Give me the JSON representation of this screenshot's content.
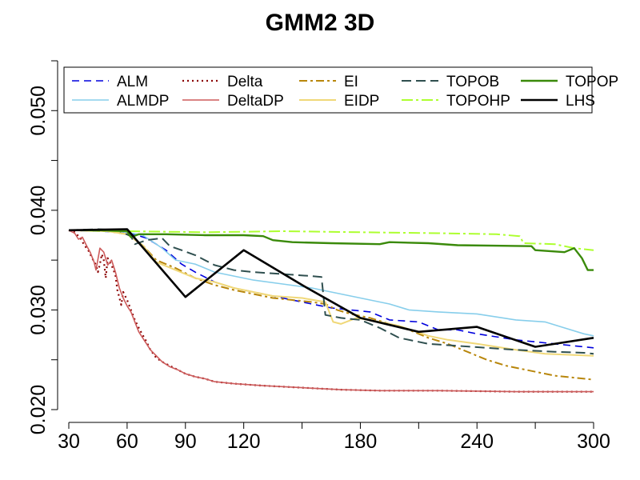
{
  "chart_data": {
    "type": "line",
    "title": "GMM2 3D",
    "xlabel": "",
    "ylabel": "",
    "xlim": [
      30,
      300
    ],
    "ylim": [
      0.02,
      0.055
    ],
    "x_ticks": [
      30,
      60,
      90,
      120,
      150,
      180,
      210,
      240,
      270,
      300
    ],
    "x_tick_labels": [
      "30",
      "60",
      "90",
      "120",
      "",
      "180",
      "",
      "240",
      "",
      "300"
    ],
    "y_ticks": [
      0.02,
      0.025,
      0.03,
      0.035,
      0.04,
      0.045,
      0.05,
      0.055
    ],
    "y_tick_labels": [
      "0.020",
      "",
      "0.030",
      "",
      "0.040",
      "",
      "0.050",
      ""
    ],
    "grid": false,
    "legend_position": "top",
    "series": [
      {
        "name": "ALM",
        "color": "#0000dd",
        "dash": "9,6",
        "width": 1.6,
        "points": [
          [
            30,
            0.038
          ],
          [
            45,
            0.0379
          ],
          [
            60,
            0.0378
          ],
          [
            70,
            0.0372
          ],
          [
            80,
            0.036
          ],
          [
            88,
            0.0346
          ],
          [
            95,
            0.0338
          ],
          [
            105,
            0.0328
          ],
          [
            115,
            0.0322
          ],
          [
            125,
            0.0318
          ],
          [
            140,
            0.0312
          ],
          [
            155,
            0.0306
          ],
          [
            165,
            0.0302
          ],
          [
            175,
            0.03
          ],
          [
            185,
            0.0298
          ],
          [
            195,
            0.029
          ],
          [
            210,
            0.0288
          ],
          [
            220,
            0.028
          ],
          [
            230,
            0.028
          ],
          [
            240,
            0.0276
          ],
          [
            260,
            0.027
          ],
          [
            280,
            0.0266
          ],
          [
            300,
            0.0262
          ]
        ]
      },
      {
        "name": "ALMDP",
        "color": "#87ceeb",
        "dash": "",
        "width": 1.6,
        "points": [
          [
            30,
            0.038
          ],
          [
            50,
            0.0379
          ],
          [
            60,
            0.0378
          ],
          [
            68,
            0.0375
          ],
          [
            72,
            0.037
          ],
          [
            78,
            0.0362
          ],
          [
            85,
            0.035
          ],
          [
            95,
            0.0346
          ],
          [
            105,
            0.0338
          ],
          [
            115,
            0.0334
          ],
          [
            125,
            0.033
          ],
          [
            140,
            0.0326
          ],
          [
            155,
            0.0322
          ],
          [
            165,
            0.0318
          ],
          [
            175,
            0.0314
          ],
          [
            185,
            0.031
          ],
          [
            195,
            0.0306
          ],
          [
            205,
            0.03
          ],
          [
            220,
            0.0298
          ],
          [
            240,
            0.0296
          ],
          [
            260,
            0.029
          ],
          [
            275,
            0.0288
          ],
          [
            285,
            0.0282
          ],
          [
            295,
            0.0276
          ],
          [
            300,
            0.0274
          ]
        ]
      },
      {
        "name": "Delta",
        "color": "#8b0000",
        "dash": "2,4",
        "width": 2.2,
        "points": [
          [
            30,
            0.038
          ],
          [
            33,
            0.0378
          ],
          [
            36,
            0.0372
          ],
          [
            38,
            0.0365
          ],
          [
            40,
            0.036
          ],
          [
            42,
            0.0352
          ],
          [
            44,
            0.0345
          ],
          [
            45,
            0.0338
          ],
          [
            46,
            0.0346
          ],
          [
            47,
            0.0356
          ],
          [
            48,
            0.035
          ],
          [
            49,
            0.0332
          ],
          [
            50,
            0.0352
          ],
          [
            52,
            0.0345
          ],
          [
            54,
            0.0335
          ],
          [
            55,
            0.032
          ],
          [
            57,
            0.0305
          ],
          [
            58,
            0.0318
          ],
          [
            60,
            0.031
          ],
          [
            62,
            0.03
          ],
          [
            64,
            0.029
          ],
          [
            66,
            0.0282
          ],
          [
            68,
            0.0275
          ],
          [
            70,
            0.0268
          ],
          [
            72,
            0.026
          ],
          [
            75,
            0.0252
          ],
          [
            78,
            0.0248
          ],
          [
            82,
            0.0244
          ],
          [
            86,
            0.024
          ],
          [
            90,
            0.0236
          ],
          [
            95,
            0.0233
          ],
          [
            100,
            0.0231
          ],
          [
            105,
            0.0228
          ],
          [
            115,
            0.0226
          ],
          [
            130,
            0.0224
          ],
          [
            150,
            0.0222
          ],
          [
            170,
            0.022
          ],
          [
            190,
            0.0219
          ],
          [
            220,
            0.0219
          ],
          [
            260,
            0.0218
          ],
          [
            300,
            0.0218
          ]
        ]
      },
      {
        "name": "DeltaDP",
        "color": "#cd5c5c",
        "dash": "",
        "width": 1.6,
        "points": [
          [
            30,
            0.038
          ],
          [
            33,
            0.0377
          ],
          [
            35,
            0.0371
          ],
          [
            37,
            0.0373
          ],
          [
            39,
            0.0365
          ],
          [
            41,
            0.0358
          ],
          [
            43,
            0.0348
          ],
          [
            44,
            0.034
          ],
          [
            46,
            0.0362
          ],
          [
            48,
            0.0358
          ],
          [
            50,
            0.0345
          ],
          [
            52,
            0.035
          ],
          [
            54,
            0.0338
          ],
          [
            56,
            0.0322
          ],
          [
            58,
            0.0312
          ],
          [
            60,
            0.0304
          ],
          [
            62,
            0.0298
          ],
          [
            64,
            0.0288
          ],
          [
            66,
            0.0278
          ],
          [
            68,
            0.0272
          ],
          [
            70,
            0.0266
          ],
          [
            72,
            0.026
          ],
          [
            75,
            0.0254
          ],
          [
            78,
            0.0248
          ],
          [
            82,
            0.0243
          ],
          [
            86,
            0.024
          ],
          [
            90,
            0.0236
          ],
          [
            95,
            0.0233
          ],
          [
            100,
            0.0231
          ],
          [
            105,
            0.0228
          ],
          [
            115,
            0.0226
          ],
          [
            130,
            0.0224
          ],
          [
            150,
            0.0222
          ],
          [
            170,
            0.022
          ],
          [
            190,
            0.0219
          ],
          [
            220,
            0.0219
          ],
          [
            260,
            0.0218
          ],
          [
            300,
            0.0218
          ]
        ]
      },
      {
        "name": "EI",
        "color": "#b8860b",
        "dash": "10,4,3,4",
        "width": 2.0,
        "points": [
          [
            30,
            0.038
          ],
          [
            50,
            0.0379
          ],
          [
            60,
            0.0376
          ],
          [
            68,
            0.0365
          ],
          [
            75,
            0.035
          ],
          [
            85,
            0.0342
          ],
          [
            95,
            0.0332
          ],
          [
            105,
            0.0325
          ],
          [
            115,
            0.032
          ],
          [
            125,
            0.0316
          ],
          [
            135,
            0.0312
          ],
          [
            145,
            0.031
          ],
          [
            155,
            0.0308
          ],
          [
            162,
            0.0306
          ],
          [
            168,
            0.03
          ],
          [
            175,
            0.0296
          ],
          [
            185,
            0.0292
          ],
          [
            195,
            0.0286
          ],
          [
            205,
            0.028
          ],
          [
            215,
            0.0272
          ],
          [
            225,
            0.0266
          ],
          [
            235,
            0.0258
          ],
          [
            245,
            0.025
          ],
          [
            255,
            0.0244
          ],
          [
            265,
            0.024
          ],
          [
            280,
            0.0234
          ],
          [
            300,
            0.023
          ]
        ]
      },
      {
        "name": "EIDP",
        "color": "#f0d878",
        "dash": "",
        "width": 2.0,
        "points": [
          [
            30,
            0.038
          ],
          [
            50,
            0.0379
          ],
          [
            60,
            0.0376
          ],
          [
            68,
            0.0365
          ],
          [
            75,
            0.0348
          ],
          [
            85,
            0.034
          ],
          [
            95,
            0.0332
          ],
          [
            105,
            0.0328
          ],
          [
            115,
            0.0322
          ],
          [
            125,
            0.0318
          ],
          [
            135,
            0.0314
          ],
          [
            150,
            0.0312
          ],
          [
            162,
            0.0308
          ],
          [
            166,
            0.0288
          ],
          [
            170,
            0.0286
          ],
          [
            178,
            0.0292
          ],
          [
            190,
            0.0288
          ],
          [
            200,
            0.0284
          ],
          [
            215,
            0.0274
          ],
          [
            225,
            0.027
          ],
          [
            240,
            0.0266
          ],
          [
            260,
            0.026
          ],
          [
            275,
            0.0256
          ],
          [
            300,
            0.0254
          ]
        ]
      },
      {
        "name": "TOPOB",
        "color": "#2f4f4f",
        "dash": "12,6",
        "width": 2.0,
        "points": [
          [
            30,
            0.038
          ],
          [
            45,
            0.0381
          ],
          [
            55,
            0.038
          ],
          [
            62,
            0.0374
          ],
          [
            64,
            0.0366
          ],
          [
            70,
            0.037
          ],
          [
            78,
            0.0372
          ],
          [
            82,
            0.0364
          ],
          [
            88,
            0.036
          ],
          [
            95,
            0.0355
          ],
          [
            105,
            0.0345
          ],
          [
            115,
            0.034
          ],
          [
            125,
            0.0338
          ],
          [
            140,
            0.0336
          ],
          [
            155,
            0.0334
          ],
          [
            160,
            0.0333
          ],
          [
            162,
            0.0295
          ],
          [
            170,
            0.0292
          ],
          [
            180,
            0.029
          ],
          [
            190,
            0.0282
          ],
          [
            200,
            0.0272
          ],
          [
            215,
            0.0266
          ],
          [
            230,
            0.0264
          ],
          [
            245,
            0.0262
          ],
          [
            260,
            0.026
          ],
          [
            280,
            0.0258
          ],
          [
            295,
            0.0257
          ],
          [
            300,
            0.0256
          ]
        ]
      },
      {
        "name": "TOPOHP",
        "color": "#adff2f",
        "dash": "14,4,3,4",
        "width": 2.0,
        "points": [
          [
            30,
            0.038
          ],
          [
            60,
            0.0379
          ],
          [
            100,
            0.0378
          ],
          [
            140,
            0.0379
          ],
          [
            180,
            0.0378
          ],
          [
            220,
            0.0377
          ],
          [
            250,
            0.0376
          ],
          [
            262,
            0.0374
          ],
          [
            264,
            0.0367
          ],
          [
            280,
            0.0366
          ],
          [
            290,
            0.0362
          ],
          [
            300,
            0.036
          ]
        ]
      },
      {
        "name": "TOPOP",
        "color": "#3a8a0a",
        "dash": "",
        "width": 2.4,
        "points": [
          [
            30,
            0.038
          ],
          [
            45,
            0.038
          ],
          [
            60,
            0.0379
          ],
          [
            62,
            0.0373
          ],
          [
            66,
            0.0376
          ],
          [
            80,
            0.0376
          ],
          [
            100,
            0.0375
          ],
          [
            120,
            0.0375
          ],
          [
            130,
            0.0374
          ],
          [
            135,
            0.037
          ],
          [
            145,
            0.0368
          ],
          [
            165,
            0.0367
          ],
          [
            190,
            0.0366
          ],
          [
            195,
            0.0368
          ],
          [
            215,
            0.0367
          ],
          [
            230,
            0.0365
          ],
          [
            268,
            0.0364
          ],
          [
            270,
            0.036
          ],
          [
            285,
            0.0358
          ],
          [
            290,
            0.0362
          ],
          [
            294,
            0.0352
          ],
          [
            297,
            0.034
          ],
          [
            300,
            0.034
          ]
        ]
      },
      {
        "name": "LHS",
        "color": "#000000",
        "dash": "",
        "width": 2.6,
        "points": [
          [
            30,
            0.038
          ],
          [
            60,
            0.0381
          ],
          [
            90,
            0.0313
          ],
          [
            120,
            0.036
          ],
          [
            150,
            0.0325
          ],
          [
            180,
            0.0292
          ],
          [
            210,
            0.0278
          ],
          [
            240,
            0.0283
          ],
          [
            270,
            0.0263
          ],
          [
            300,
            0.0272
          ]
        ]
      }
    ]
  }
}
